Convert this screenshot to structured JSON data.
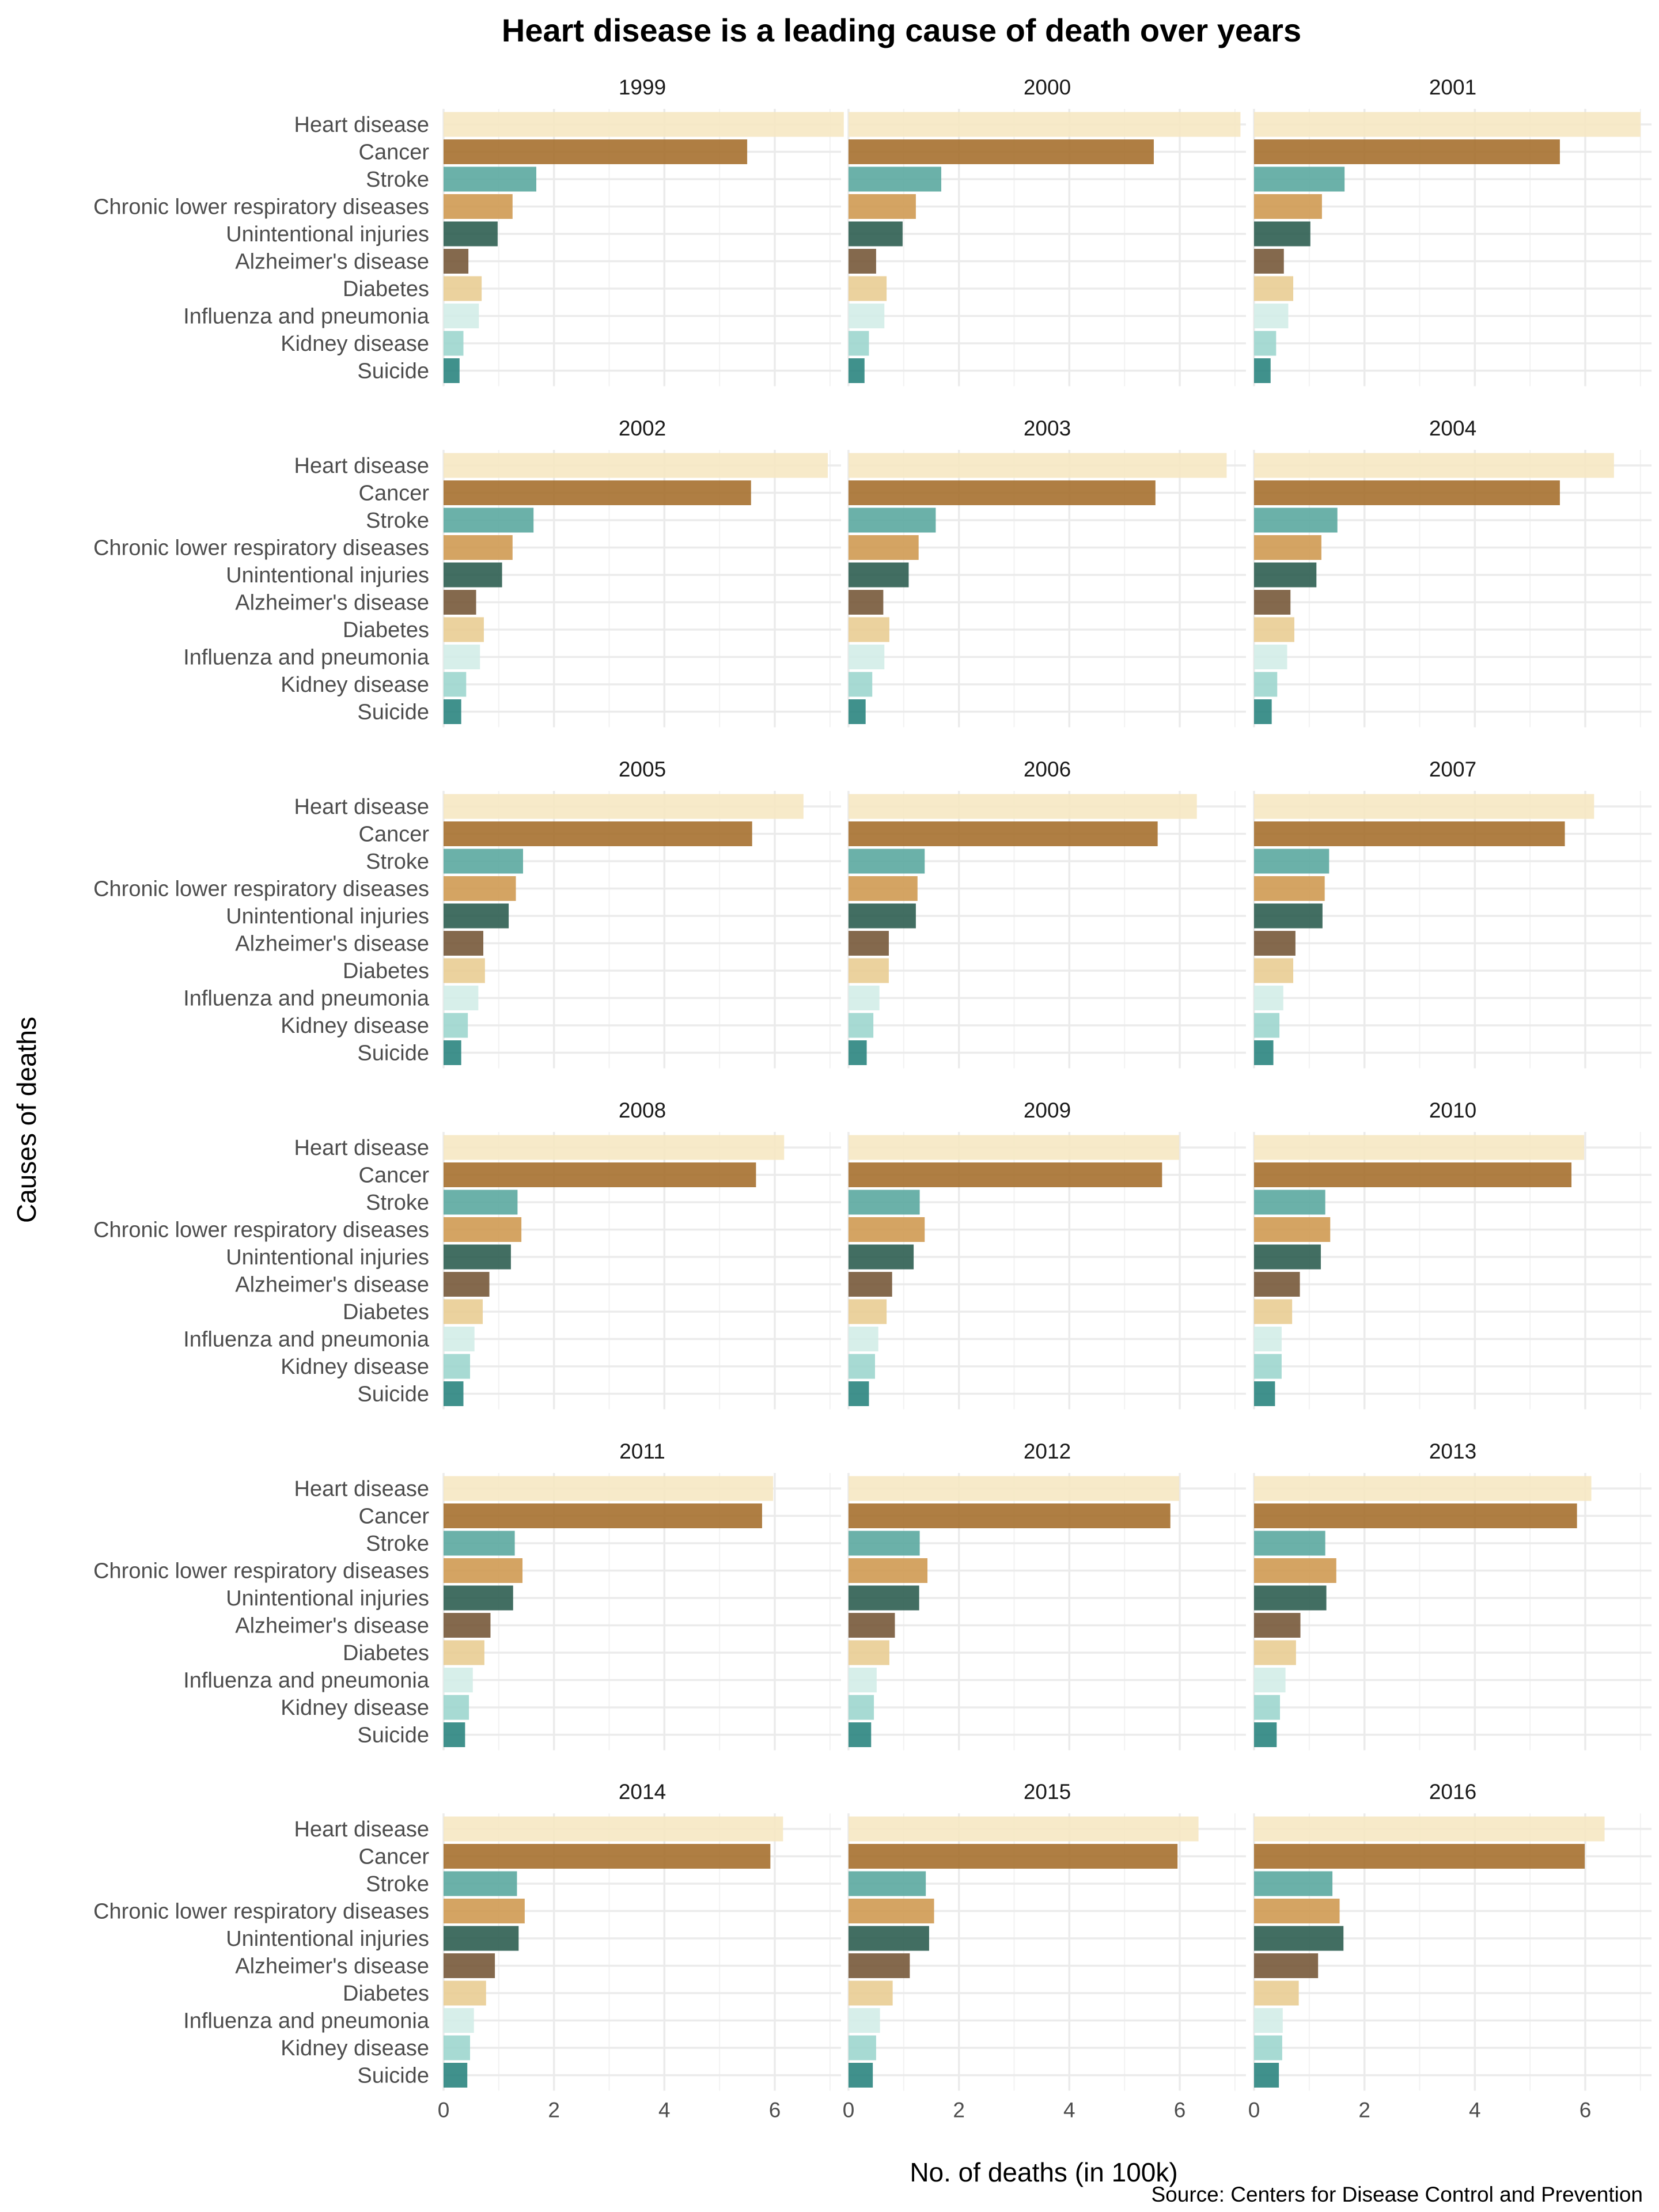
{
  "chart_data": {
    "type": "bar",
    "orientation": "horizontal",
    "facets_by": "year",
    "title": "Heart disease is a leading cause of death over years",
    "xlabel": "No. of deaths (in 100k)",
    "ylabel": "Causes of deaths",
    "caption": "Source: Centers for Disease Control and Prevention",
    "xlim": [
      0,
      7.2
    ],
    "xticks": [
      "0",
      "2",
      "4",
      "6"
    ],
    "grid": true,
    "legend": "none",
    "categories": [
      "Heart disease",
      "Cancer",
      "Stroke",
      "Chronic lower respiratory diseases",
      "Unintentional injuries",
      "Alzheimer's disease",
      "Diabetes",
      "Influenza and pneumonia",
      "Kidney disease",
      "Suicide"
    ],
    "colors": [
      "#f6e8c3",
      "#a6702f",
      "#5ba8a0",
      "#cf9a52",
      "#2e5e51",
      "#77593a",
      "#e9cd93",
      "#d3ede8",
      "#9dd6ce",
      "#2b8580"
    ],
    "panels": [
      {
        "year": "1999",
        "values": [
          7.25,
          5.5,
          1.68,
          1.25,
          0.98,
          0.45,
          0.69,
          0.64,
          0.36,
          0.29
        ]
      },
      {
        "year": "2000",
        "values": [
          7.1,
          5.53,
          1.68,
          1.22,
          0.98,
          0.5,
          0.69,
          0.65,
          0.37,
          0.29
        ]
      },
      {
        "year": "2001",
        "values": [
          7.0,
          5.54,
          1.64,
          1.23,
          1.02,
          0.54,
          0.71,
          0.62,
          0.4,
          0.3
        ]
      },
      {
        "year": "2002",
        "values": [
          6.96,
          5.57,
          1.63,
          1.25,
          1.06,
          0.59,
          0.73,
          0.66,
          0.41,
          0.32
        ]
      },
      {
        "year": "2003",
        "values": [
          6.85,
          5.56,
          1.58,
          1.27,
          1.09,
          0.63,
          0.74,
          0.65,
          0.43,
          0.31
        ]
      },
      {
        "year": "2004",
        "values": [
          6.52,
          5.54,
          1.51,
          1.22,
          1.13,
          0.66,
          0.73,
          0.6,
          0.42,
          0.32
        ]
      },
      {
        "year": "2005",
        "values": [
          6.52,
          5.59,
          1.44,
          1.31,
          1.18,
          0.72,
          0.75,
          0.63,
          0.44,
          0.32
        ]
      },
      {
        "year": "2006",
        "values": [
          6.31,
          5.6,
          1.38,
          1.25,
          1.22,
          0.73,
          0.73,
          0.56,
          0.45,
          0.33
        ]
      },
      {
        "year": "2007",
        "values": [
          6.16,
          5.63,
          1.36,
          1.28,
          1.24,
          0.75,
          0.71,
          0.53,
          0.46,
          0.35
        ]
      },
      {
        "year": "2008",
        "values": [
          6.17,
          5.66,
          1.34,
          1.41,
          1.22,
          0.83,
          0.71,
          0.56,
          0.48,
          0.36
        ]
      },
      {
        "year": "2009",
        "values": [
          5.99,
          5.68,
          1.29,
          1.38,
          1.18,
          0.79,
          0.69,
          0.54,
          0.48,
          0.37
        ]
      },
      {
        "year": "2010",
        "values": [
          5.98,
          5.75,
          1.29,
          1.38,
          1.21,
          0.83,
          0.69,
          0.5,
          0.5,
          0.38
        ]
      },
      {
        "year": "2011",
        "values": [
          5.97,
          5.77,
          1.29,
          1.43,
          1.26,
          0.85,
          0.74,
          0.53,
          0.46,
          0.39
        ]
      },
      {
        "year": "2012",
        "values": [
          5.99,
          5.83,
          1.29,
          1.43,
          1.28,
          0.84,
          0.74,
          0.51,
          0.46,
          0.41
        ]
      },
      {
        "year": "2013",
        "values": [
          6.11,
          5.85,
          1.29,
          1.49,
          1.31,
          0.84,
          0.76,
          0.57,
          0.47,
          0.41
        ]
      },
      {
        "year": "2014",
        "values": [
          6.15,
          5.92,
          1.33,
          1.47,
          1.36,
          0.93,
          0.77,
          0.55,
          0.48,
          0.43
        ]
      },
      {
        "year": "2015",
        "values": [
          6.34,
          5.96,
          1.4,
          1.55,
          1.46,
          1.11,
          0.8,
          0.57,
          0.5,
          0.44
        ]
      },
      {
        "year": "2016",
        "values": [
          6.35,
          5.99,
          1.42,
          1.55,
          1.62,
          1.16,
          0.81,
          0.52,
          0.51,
          0.45
        ]
      }
    ]
  }
}
